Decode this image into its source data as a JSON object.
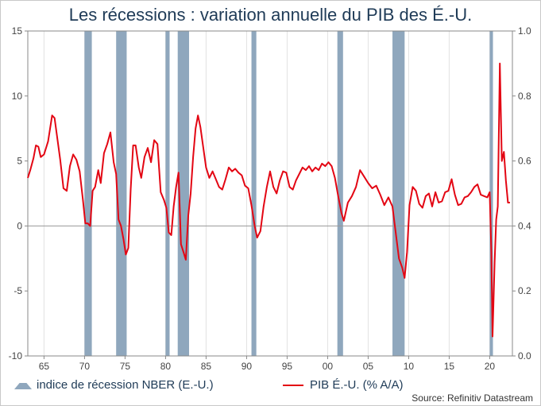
{
  "title": "Les récessions : variation annuelle du PIB des É.-U.",
  "legend": {
    "recession": "indice de récession NBER (E.-U.)",
    "gdp": "PIB É.-U. (% A/A)"
  },
  "source": "Source: Refinitiv Datastream",
  "colors": {
    "gdp_line": "#e30613",
    "recession_band": "#8fa7bd",
    "zero_line": "#999999"
  },
  "chart_data": {
    "type": "line",
    "title": "Les récessions : variation annuelle du PIB des É.-U.",
    "x_range": [
      1963,
      2022.8
    ],
    "y_left": {
      "min": -10,
      "max": 15,
      "ticks": [
        -10,
        -5,
        0,
        5,
        10,
        15
      ],
      "tick_labels": [
        "-10",
        "-5",
        "0",
        "5",
        "10",
        "15"
      ]
    },
    "y_right": {
      "min": 0.0,
      "max": 1.0,
      "ticks": [
        0.0,
        0.2,
        0.4,
        0.6,
        0.8,
        1.0
      ],
      "tick_labels": [
        "0.0",
        "0.2",
        "0.4",
        "0.6",
        "0.8",
        "1.0"
      ]
    },
    "x_ticks": [
      1965,
      1970,
      1975,
      1980,
      1985,
      1990,
      1995,
      2000,
      2005,
      2010,
      2015,
      2020
    ],
    "x_tick_labels": [
      "65",
      "70",
      "75",
      "80",
      "85",
      "90",
      "95",
      "00",
      "05",
      "10",
      "15",
      "20"
    ],
    "grid": "vertical",
    "legend_position": "bottom",
    "recessions": [
      {
        "start": 1970.0,
        "end": 1970.9
      },
      {
        "start": 1973.9,
        "end": 1975.2
      },
      {
        "start": 1980.0,
        "end": 1980.5
      },
      {
        "start": 1981.5,
        "end": 1982.9
      },
      {
        "start": 1990.6,
        "end": 1991.2
      },
      {
        "start": 2001.2,
        "end": 2001.9
      },
      {
        "start": 2008.0,
        "end": 2009.5
      },
      {
        "start": 2020.0,
        "end": 2020.4
      }
    ],
    "series": [
      {
        "name": "PIB É.-U. (% A/A)",
        "x": [
          1963.0,
          1963.3,
          1963.7,
          1964.0,
          1964.3,
          1964.6,
          1965.0,
          1965.5,
          1966.0,
          1966.3,
          1966.7,
          1967.0,
          1967.4,
          1967.8,
          1968.2,
          1968.6,
          1969.0,
          1969.4,
          1969.8,
          1970.1,
          1970.4,
          1970.7,
          1971.0,
          1971.3,
          1971.7,
          1972.0,
          1972.4,
          1972.8,
          1973.2,
          1973.6,
          1973.9,
          1974.2,
          1974.5,
          1974.8,
          1975.1,
          1975.4,
          1975.7,
          1976.0,
          1976.3,
          1976.7,
          1977.0,
          1977.4,
          1977.8,
          1978.2,
          1978.6,
          1979.0,
          1979.4,
          1979.8,
          1980.1,
          1980.4,
          1980.7,
          1981.0,
          1981.3,
          1981.6,
          1981.9,
          1982.2,
          1982.5,
          1982.8,
          1983.1,
          1983.4,
          1983.7,
          1984.0,
          1984.3,
          1984.7,
          1985.0,
          1985.4,
          1985.8,
          1986.2,
          1986.6,
          1987.0,
          1987.4,
          1987.8,
          1988.2,
          1988.6,
          1989.0,
          1989.4,
          1989.8,
          1990.2,
          1990.6,
          1991.0,
          1991.3,
          1991.7,
          1992.1,
          1992.5,
          1992.9,
          1993.3,
          1993.7,
          1994.1,
          1994.5,
          1994.9,
          1995.3,
          1995.7,
          1996.1,
          1996.5,
          1996.9,
          1997.3,
          1997.7,
          1998.1,
          1998.5,
          1998.9,
          1999.3,
          1999.7,
          2000.1,
          2000.5,
          2000.9,
          2001.3,
          2001.7,
          2002.0,
          2002.5,
          2003.0,
          2003.5,
          2004.0,
          2004.5,
          2005.0,
          2005.5,
          2006.0,
          2006.5,
          2007.0,
          2007.5,
          2008.0,
          2008.4,
          2008.8,
          2009.2,
          2009.5,
          2009.8,
          2010.1,
          2010.5,
          2010.9,
          2011.3,
          2011.7,
          2012.1,
          2012.5,
          2012.9,
          2013.3,
          2013.7,
          2014.1,
          2014.5,
          2014.9,
          2015.3,
          2015.7,
          2016.1,
          2016.5,
          2016.9,
          2017.3,
          2017.7,
          2018.1,
          2018.5,
          2018.9,
          2019.3,
          2019.7,
          2020.0,
          2020.2,
          2020.35,
          2020.6,
          2020.8,
          2021.0,
          2021.25,
          2021.5,
          2021.75,
          2022.0,
          2022.25,
          2022.5
        ],
        "values": [
          3.7,
          4.3,
          5.2,
          6.2,
          6.1,
          5.3,
          5.5,
          6.5,
          8.5,
          8.3,
          6.5,
          5.1,
          2.9,
          2.7,
          4.6,
          5.5,
          5.1,
          4.2,
          2.0,
          0.2,
          0.2,
          0.0,
          2.7,
          3.0,
          4.3,
          3.3,
          5.6,
          6.3,
          7.2,
          4.9,
          4.0,
          0.5,
          0.0,
          -1.0,
          -2.2,
          -1.7,
          2.8,
          6.2,
          6.2,
          4.5,
          3.7,
          5.3,
          6.0,
          4.9,
          6.6,
          6.3,
          2.6,
          2.0,
          1.4,
          -0.5,
          -0.7,
          1.5,
          3.0,
          4.1,
          -1.4,
          -2.0,
          -2.6,
          0.8,
          2.5,
          5.3,
          7.5,
          8.5,
          7.6,
          5.8,
          4.5,
          3.7,
          4.2,
          3.6,
          3.0,
          2.8,
          3.6,
          4.5,
          4.2,
          4.4,
          4.1,
          3.9,
          3.1,
          2.9,
          1.6,
          0.0,
          -0.9,
          -0.4,
          1.5,
          3.0,
          4.2,
          3.0,
          2.5,
          3.5,
          4.2,
          4.1,
          3.0,
          2.8,
          3.5,
          4.0,
          4.5,
          4.3,
          4.6,
          4.2,
          4.5,
          4.3,
          4.8,
          4.6,
          4.9,
          4.6,
          3.7,
          2.3,
          1.0,
          0.4,
          1.8,
          2.3,
          3.0,
          4.3,
          3.8,
          3.3,
          2.9,
          3.1,
          2.4,
          1.6,
          2.2,
          1.5,
          -0.5,
          -2.5,
          -3.2,
          -4.0,
          -2.0,
          1.6,
          3.0,
          2.7,
          1.7,
          1.4,
          2.3,
          2.5,
          1.5,
          2.6,
          1.8,
          1.9,
          2.6,
          2.7,
          3.6,
          2.4,
          1.6,
          1.7,
          2.2,
          2.3,
          2.6,
          3.0,
          3.2,
          2.4,
          2.3,
          2.2,
          2.6,
          -2.0,
          -8.5,
          -2.8,
          0.5,
          1.5,
          12.5,
          5.0,
          5.7,
          3.5,
          1.8,
          1.8
        ]
      }
    ]
  }
}
